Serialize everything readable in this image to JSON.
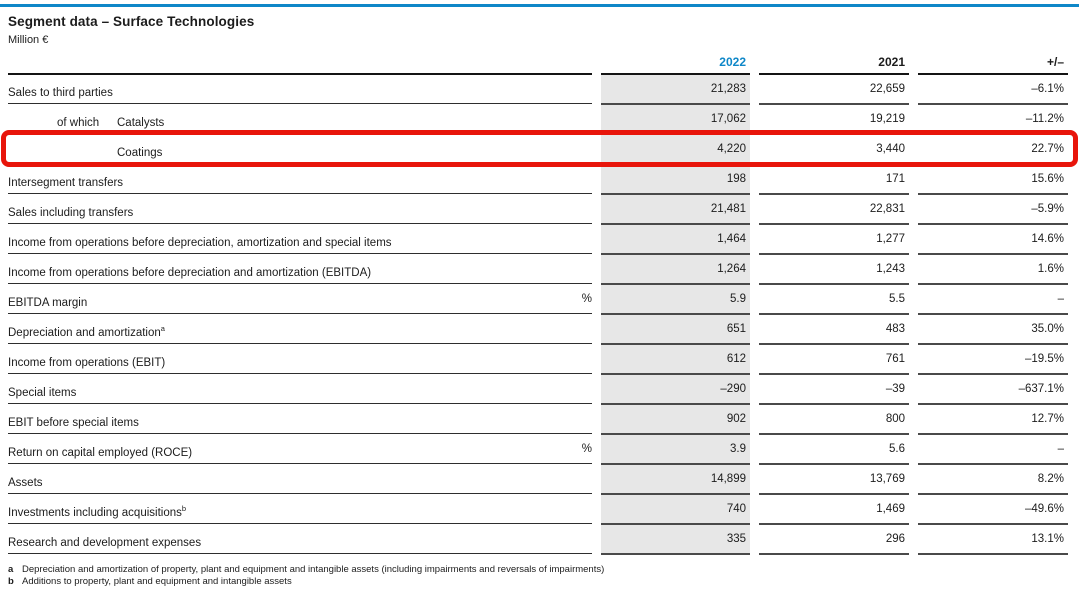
{
  "colors": {
    "accent_blue": "#0e87c8",
    "highlight_red": "#e8150b",
    "column_shade": "#e7e7e7"
  },
  "header": {
    "title": "Segment data – Surface Technologies",
    "unit": "Million €"
  },
  "table": {
    "columns": [
      "2022",
      "2021",
      "+/–"
    ],
    "rows": [
      {
        "prefix": "",
        "label": "Sales to third parties",
        "sup": "",
        "indent": 0,
        "unit": "",
        "v2022": "21,283",
        "v2021": "22,659",
        "delta": "–6.1%",
        "highlight": false
      },
      {
        "prefix": "of which",
        "label": "Catalysts",
        "sup": "",
        "indent": 1,
        "unit": "",
        "v2022": "17,062",
        "v2021": "19,219",
        "delta": "–11.2%",
        "highlight": false
      },
      {
        "prefix": "",
        "label": "Coatings",
        "sup": "",
        "indent": 2,
        "unit": "",
        "v2022": "4,220",
        "v2021": "3,440",
        "delta": "22.7%",
        "highlight": true
      },
      {
        "prefix": "",
        "label": "Intersegment transfers",
        "sup": "",
        "indent": 0,
        "unit": "",
        "v2022": "198",
        "v2021": "171",
        "delta": "15.6%",
        "highlight": false
      },
      {
        "prefix": "",
        "label": "Sales including transfers",
        "sup": "",
        "indent": 0,
        "unit": "",
        "v2022": "21,481",
        "v2021": "22,831",
        "delta": "–5.9%",
        "highlight": false
      },
      {
        "prefix": "",
        "label": "Income from operations before depreciation, amortization and special items",
        "sup": "",
        "indent": 0,
        "unit": "",
        "v2022": "1,464",
        "v2021": "1,277",
        "delta": "14.6%",
        "highlight": false
      },
      {
        "prefix": "",
        "label": "Income from operations before depreciation and amortization (EBITDA)",
        "sup": "",
        "indent": 0,
        "unit": "",
        "v2022": "1,264",
        "v2021": "1,243",
        "delta": "1.6%",
        "highlight": false
      },
      {
        "prefix": "",
        "label": "EBITDA margin",
        "sup": "",
        "indent": 0,
        "unit": "%",
        "v2022": "5.9",
        "v2021": "5.5",
        "delta": "–",
        "highlight": false
      },
      {
        "prefix": "",
        "label": "Depreciation and amortization",
        "sup": "a",
        "indent": 0,
        "unit": "",
        "v2022": "651",
        "v2021": "483",
        "delta": "35.0%",
        "highlight": false
      },
      {
        "prefix": "",
        "label": "Income from operations (EBIT)",
        "sup": "",
        "indent": 0,
        "unit": "",
        "v2022": "612",
        "v2021": "761",
        "delta": "–19.5%",
        "highlight": false
      },
      {
        "prefix": "",
        "label": "Special items",
        "sup": "",
        "indent": 0,
        "unit": "",
        "v2022": "–290",
        "v2021": "–39",
        "delta": "–637.1%",
        "highlight": false
      },
      {
        "prefix": "",
        "label": "EBIT before special items",
        "sup": "",
        "indent": 0,
        "unit": "",
        "v2022": "902",
        "v2021": "800",
        "delta": "12.7%",
        "highlight": false
      },
      {
        "prefix": "",
        "label": "Return on capital employed (ROCE)",
        "sup": "",
        "indent": 0,
        "unit": "%",
        "v2022": "3.9",
        "v2021": "5.6",
        "delta": "–",
        "highlight": false
      },
      {
        "prefix": "",
        "label": "Assets",
        "sup": "",
        "indent": 0,
        "unit": "",
        "v2022": "14,899",
        "v2021": "13,769",
        "delta": "8.2%",
        "highlight": false
      },
      {
        "prefix": "",
        "label": "Investments including acquisitions",
        "sup": "b",
        "indent": 0,
        "unit": "",
        "v2022": "740",
        "v2021": "1,469",
        "delta": "–49.6%",
        "highlight": false
      },
      {
        "prefix": "",
        "label": "Research and development expenses",
        "sup": "",
        "indent": 0,
        "unit": "",
        "v2022": "335",
        "v2021": "296",
        "delta": "13.1%",
        "highlight": false
      }
    ]
  },
  "footnotes": [
    {
      "marker": "a",
      "text": "Depreciation and amortization of property, plant and equipment and intangible assets (including impairments and reversals of impairments)"
    },
    {
      "marker": "b",
      "text": "Additions to property, plant and equipment and intangible assets"
    }
  ]
}
